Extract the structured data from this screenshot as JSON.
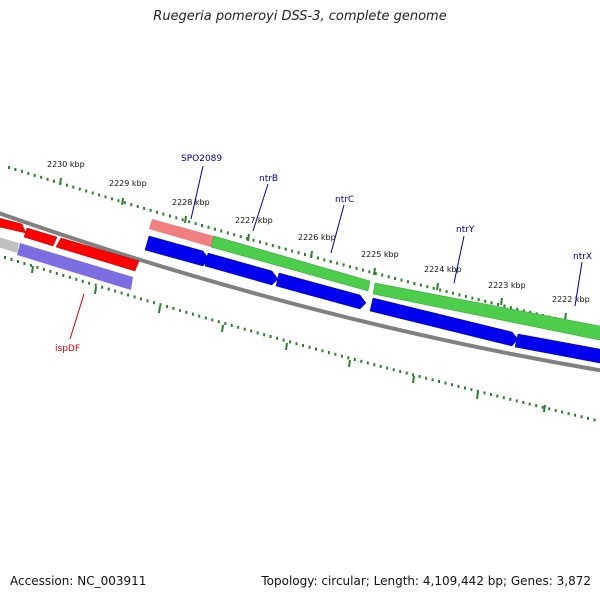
{
  "title": "Ruegeria pomeroyi DSS-3, complete genome",
  "footer": {
    "accession": "Accession: NC_003911",
    "summary": "Topology: circular; Length: 4,109,442 bp; Genes: 3,872"
  },
  "colors": {
    "background": "#ffffff",
    "backbone": "#808080",
    "ruler_ticks": "#2e7d32",
    "forward_gene": "#ff0000",
    "forward_gene_light": "#f08080",
    "forward_operon": "#4ccd4c",
    "reverse_gene": "#0000ee",
    "reverse_gene_light": "#7c6ee0",
    "grey_gene": "#c0c0c0",
    "label_forward": "#cc0000",
    "label_reverse": "#00008b"
  },
  "ruler": {
    "unit": "kbp",
    "labels": [
      "2230 kbp",
      "2229 kbp",
      "2228 kbp",
      "2227 kbp",
      "2226 kbp",
      "2225 kbp",
      "2224 kbp",
      "2223 kbp",
      "2222 kbp"
    ]
  },
  "gene_labels": [
    {
      "name": "SPO2089",
      "strand": "reverse"
    },
    {
      "name": "ntrB",
      "strand": "reverse"
    },
    {
      "name": "ntrC",
      "strand": "reverse"
    },
    {
      "name": "ntrY",
      "strand": "reverse"
    },
    {
      "name": "ntrX",
      "strand": "reverse"
    },
    {
      "name": "ispDF",
      "strand": "forward"
    }
  ]
}
